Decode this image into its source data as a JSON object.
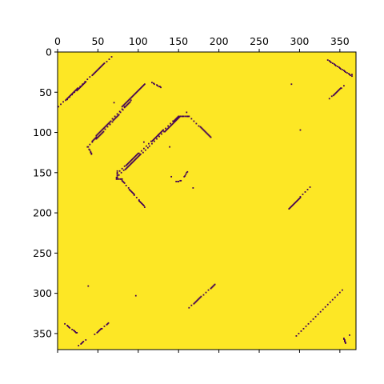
{
  "chart_data": {
    "type": "heatmap",
    "title": "",
    "xlabel": "",
    "ylabel": "",
    "x_axis_position": "top",
    "y_axis_inverted": true,
    "xlim": [
      0,
      370
    ],
    "ylim": [
      370,
      0
    ],
    "grid": false,
    "legend": "none",
    "colors": {
      "background_value": "#fde725",
      "mark_value": "#440154"
    },
    "x_ticks": [
      0,
      50,
      100,
      150,
      200,
      250,
      300,
      350
    ],
    "x_tick_labels": [
      "0",
      "50",
      "100",
      "150",
      "200",
      "250",
      "300",
      "350"
    ],
    "y_ticks": [
      0,
      50,
      100,
      150,
      200,
      250,
      300,
      350
    ],
    "y_tick_labels": [
      "0",
      "50",
      "100",
      "150",
      "200",
      "250",
      "300",
      "350"
    ],
    "segments": [
      {
        "from": [
          1,
          68
        ],
        "to": [
          67,
          6
        ]
      },
      {
        "from": [
          12,
          59
        ],
        "to": [
          35,
          37
        ]
      },
      {
        "from": [
          37,
          118
        ],
        "to": [
          48,
          106
        ]
      },
      {
        "from": [
          48,
          108
        ],
        "to": [
          65,
          90
        ]
      },
      {
        "from": [
          48,
          104
        ],
        "to": [
          84,
          67
        ]
      },
      {
        "from": [
          65,
          90
        ],
        "to": [
          93,
          58
        ]
      },
      {
        "from": [
          80,
          68
        ],
        "to": [
          108,
          40
        ]
      },
      {
        "from": [
          73,
          156
        ],
        "to": [
          114,
          117
        ]
      },
      {
        "from": [
          114,
          117
        ],
        "to": [
          152,
          80
        ]
      },
      {
        "from": [
          77,
          148
        ],
        "to": [
          125,
          103
        ]
      },
      {
        "from": [
          125,
          103
        ],
        "to": [
          150,
          80
        ]
      },
      {
        "from": [
          152,
          80
        ],
        "to": [
          163,
          80
        ]
      },
      {
        "from": [
          163,
          80
        ],
        "to": [
          190,
          106
        ]
      },
      {
        "from": [
          117,
          38
        ],
        "to": [
          128,
          44
        ]
      },
      {
        "from": [
          38,
          118
        ],
        "to": [
          42,
          127
        ]
      },
      {
        "from": [
          73,
          158
        ],
        "to": [
          80,
          158
        ]
      },
      {
        "from": [
          74,
          148
        ],
        "to": [
          74,
          157
        ]
      },
      {
        "from": [
          80,
          160
        ],
        "to": [
          110,
          195
        ]
      },
      {
        "from": [
          147,
          161
        ],
        "to": [
          153,
          160
        ]
      },
      {
        "from": [
          157,
          155
        ],
        "to": [
          162,
          147
        ]
      },
      {
        "from": [
          287,
          195
        ],
        "to": [
          315,
          166
        ]
      },
      {
        "from": [
          335,
          10
        ],
        "to": [
          365,
          30
        ]
      },
      {
        "from": [
          337,
          58
        ],
        "to": [
          357,
          40
        ]
      },
      {
        "from": [
          163,
          318
        ],
        "to": [
          195,
          289
        ]
      },
      {
        "from": [
          296,
          353
        ],
        "to": [
          355,
          294
        ]
      },
      {
        "from": [
          9,
          338
        ],
        "to": [
          26,
          351
        ]
      },
      {
        "from": [
          26,
          365
        ],
        "to": [
          35,
          358
        ]
      },
      {
        "from": [
          46,
          351
        ],
        "to": [
          63,
          337
        ]
      },
      {
        "from": [
          355,
          356
        ],
        "to": [
          357,
          362
        ]
      }
    ],
    "points": [
      [
        38,
        291
      ],
      [
        97,
        303
      ],
      [
        290,
        40
      ],
      [
        301,
        97
      ],
      [
        141,
        155
      ],
      [
        168,
        169
      ],
      [
        107,
        112
      ],
      [
        139,
        118
      ],
      [
        362,
        352
      ],
      [
        365,
        28
      ],
      [
        160,
        75
      ],
      [
        70,
        63
      ]
    ]
  }
}
